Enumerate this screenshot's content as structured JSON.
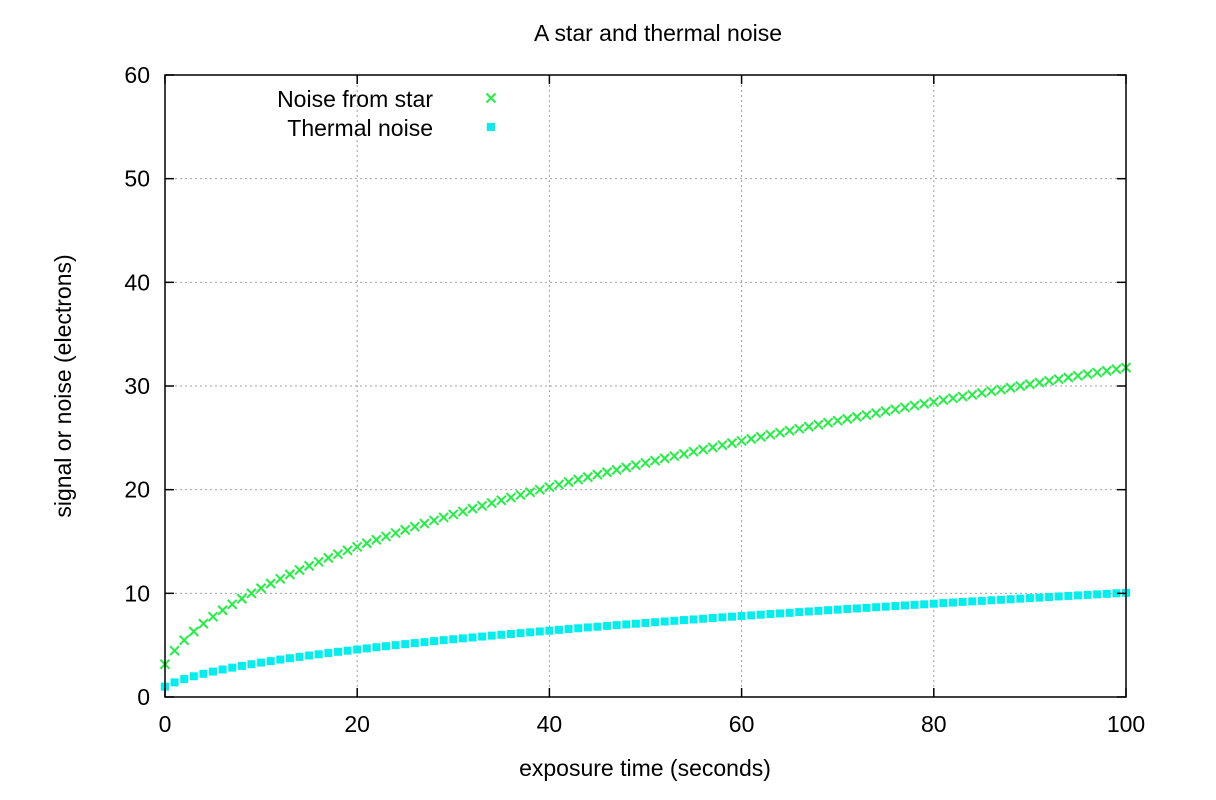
{
  "chart_data": {
    "type": "scatter",
    "title": "A star and thermal noise",
    "xlabel": "exposure time (seconds)",
    "ylabel": "signal or noise (electrons)",
    "xlim": [
      0,
      100
    ],
    "ylim": [
      0,
      60
    ],
    "xticks": [
      0,
      20,
      40,
      60,
      80,
      100
    ],
    "yticks": [
      0,
      10,
      20,
      30,
      40,
      50,
      60
    ],
    "grid": true,
    "legend_position": "top-left",
    "x": [
      0,
      1,
      2,
      3,
      4,
      5,
      6,
      7,
      8,
      9,
      10,
      11,
      12,
      13,
      14,
      15,
      16,
      17,
      18,
      19,
      20,
      21,
      22,
      23,
      24,
      25,
      26,
      27,
      28,
      29,
      30,
      31,
      32,
      33,
      34,
      35,
      36,
      37,
      38,
      39,
      40,
      41,
      42,
      43,
      44,
      45,
      46,
      47,
      48,
      49,
      50,
      51,
      52,
      53,
      54,
      55,
      56,
      57,
      58,
      59,
      60,
      61,
      62,
      63,
      64,
      65,
      66,
      67,
      68,
      69,
      70,
      71,
      72,
      73,
      74,
      75,
      76,
      77,
      78,
      79,
      80,
      81,
      82,
      83,
      84,
      85,
      86,
      87,
      88,
      89,
      90,
      91,
      92,
      93,
      94,
      95,
      96,
      97,
      98,
      99,
      100
    ],
    "series": [
      {
        "name": "Noise from star",
        "marker": "x",
        "color": "#22ee44",
        "values": [
          3.16,
          4.47,
          5.48,
          6.32,
          7.07,
          7.75,
          8.37,
          8.94,
          9.49,
          10.0,
          10.49,
          10.95,
          11.4,
          11.83,
          12.25,
          12.65,
          13.04,
          13.42,
          13.78,
          14.14,
          14.49,
          14.83,
          15.17,
          15.49,
          15.81,
          16.12,
          16.43,
          16.73,
          17.03,
          17.32,
          17.61,
          17.89,
          18.17,
          18.44,
          18.71,
          18.97,
          19.24,
          19.49,
          19.75,
          20.0,
          20.25,
          20.49,
          20.74,
          20.98,
          21.21,
          21.45,
          21.68,
          21.91,
          22.14,
          22.36,
          22.58,
          22.8,
          23.02,
          23.24,
          23.45,
          23.66,
          23.87,
          24.08,
          24.29,
          24.49,
          24.7,
          24.9,
          25.1,
          25.3,
          25.5,
          25.69,
          25.88,
          26.08,
          26.27,
          26.46,
          26.65,
          26.83,
          27.02,
          27.2,
          27.39,
          27.57,
          27.75,
          27.93,
          28.11,
          28.28,
          28.46,
          28.64,
          28.81,
          28.98,
          29.15,
          29.33,
          29.5,
          29.66,
          29.83,
          30.0,
          30.17,
          30.33,
          30.5,
          30.66,
          30.82,
          30.98,
          31.14,
          31.3,
          31.46,
          31.62,
          31.78
        ]
      },
      {
        "name": "Thermal noise",
        "marker": "square",
        "color": "#00eeee",
        "values": [
          1.0,
          1.41,
          1.73,
          2.0,
          2.24,
          2.45,
          2.65,
          2.83,
          3.0,
          3.16,
          3.32,
          3.46,
          3.61,
          3.74,
          3.87,
          4.0,
          4.12,
          4.24,
          4.36,
          4.47,
          4.58,
          4.69,
          4.8,
          4.9,
          5.0,
          5.1,
          5.2,
          5.29,
          5.39,
          5.48,
          5.57,
          5.66,
          5.74,
          5.83,
          5.92,
          6.0,
          6.08,
          6.16,
          6.24,
          6.32,
          6.4,
          6.48,
          6.56,
          6.63,
          6.71,
          6.78,
          6.86,
          6.93,
          7.0,
          7.07,
          7.14,
          7.21,
          7.28,
          7.35,
          7.42,
          7.48,
          7.55,
          7.62,
          7.68,
          7.75,
          7.81,
          7.87,
          7.94,
          8.0,
          8.06,
          8.12,
          8.19,
          8.25,
          8.31,
          8.37,
          8.43,
          8.49,
          8.54,
          8.6,
          8.66,
          8.72,
          8.77,
          8.83,
          8.89,
          8.94,
          9.0,
          9.06,
          9.11,
          9.17,
          9.22,
          9.27,
          9.33,
          9.38,
          9.43,
          9.49,
          9.54,
          9.59,
          9.64,
          9.7,
          9.75,
          9.8,
          9.85,
          9.9,
          9.95,
          10.0,
          10.05
        ]
      }
    ]
  }
}
